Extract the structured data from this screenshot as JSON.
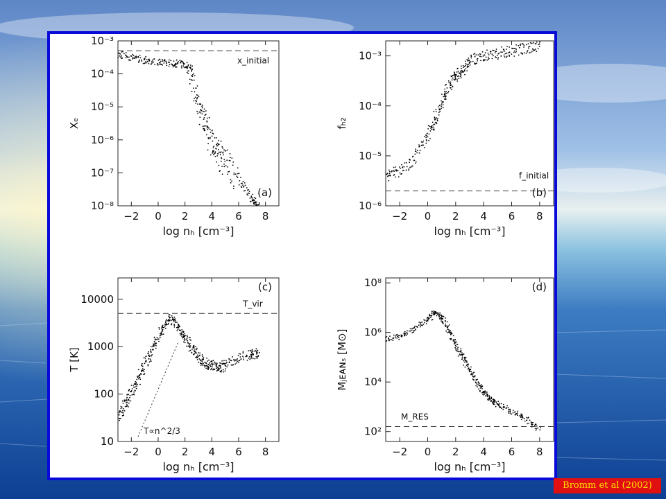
{
  "citation": "Bromm et al (2002)",
  "colors": {
    "frame": "#0a0ad8",
    "citation_bg": "#e01010",
    "citation_text": "#ffe000",
    "points": "#000000"
  },
  "chart_data": [
    {
      "panel": "(a)",
      "type": "scatter",
      "xlabel": "log n_H [cm^-3]",
      "ylabel": "X_e",
      "xlim": [
        -3,
        9
      ],
      "ylim_log10": [
        -8,
        -3
      ],
      "ylog": true,
      "xticks": [
        -2,
        0,
        2,
        4,
        6,
        8
      ],
      "yticks": [
        -8,
        -7,
        -6,
        -5,
        -4,
        -3
      ],
      "reference_line": {
        "label": "x_initial",
        "y_log10": -3.3
      },
      "points_x": [
        -3,
        -2,
        -1,
        0,
        1,
        2,
        2.5,
        3,
        3.5,
        4,
        4.5,
        5,
        6,
        7,
        7.5
      ],
      "points_y_log10": [
        -3.4,
        -3.5,
        -3.58,
        -3.63,
        -3.68,
        -3.72,
        -4.0,
        -4.9,
        -5.6,
        -6.1,
        -6.4,
        -6.7,
        -7.2,
        -7.8,
        -8.0
      ]
    },
    {
      "panel": "(b)",
      "type": "scatter",
      "xlabel": "log n_H [cm^-3]",
      "ylabel": "f_H2",
      "xlim": [
        -3,
        9
      ],
      "ylim_log10": [
        -6,
        -2.7
      ],
      "ylog": true,
      "xticks": [
        -2,
        0,
        2,
        4,
        6,
        8
      ],
      "yticks": [
        -6,
        -5,
        -4,
        -3
      ],
      "reference_line": {
        "label": "f_initial",
        "y_log10": -5.7
      },
      "points_x": [
        -3,
        -2,
        -1,
        0,
        0.5,
        1,
        1.5,
        2,
        2.5,
        3,
        4,
        5,
        6,
        7,
        8
      ],
      "points_y_log10": [
        -5.4,
        -5.3,
        -5.1,
        -4.6,
        -4.3,
        -3.9,
        -3.6,
        -3.4,
        -3.3,
        -3.1,
        -3.0,
        -2.95,
        -2.9,
        -2.85,
        -2.8
      ]
    },
    {
      "panel": "(c)",
      "type": "scatter",
      "xlabel": "log n_H [cm^-3]",
      "ylabel": "T [K]",
      "xlim": [
        -3,
        9
      ],
      "ylim_log10": [
        1,
        4.45
      ],
      "ylog": true,
      "xticks": [
        -2,
        0,
        2,
        4,
        6,
        8
      ],
      "ytick_labels": [
        "10",
        "100",
        "1000",
        "10000"
      ],
      "reference_line": {
        "label": "T_vir",
        "y_log10": 3.7
      },
      "trend_line": {
        "label": "T∝n^2/3",
        "x": [
          -1.5,
          1.5
        ],
        "y_log10": [
          1.1,
          3.1
        ]
      },
      "points_x": [
        -3,
        -2.5,
        -2,
        -1.5,
        -1,
        -0.5,
        0,
        0.5,
        1,
        1.5,
        2,
        2.5,
        3,
        3.5,
        4,
        4.5,
        5,
        6,
        7,
        7.5
      ],
      "points_y_log10": [
        1.5,
        1.75,
        2.0,
        2.3,
        2.6,
        2.9,
        3.2,
        3.45,
        3.6,
        3.4,
        3.2,
        3.0,
        2.8,
        2.65,
        2.6,
        2.55,
        2.6,
        2.75,
        2.85,
        2.85
      ]
    },
    {
      "panel": "(d)",
      "type": "scatter",
      "xlabel": "log n_H [cm^-3]",
      "ylabel": "M_JEANS [M_sun]",
      "xlim": [
        -3,
        9
      ],
      "ylim_log10": [
        1.6,
        8.2
      ],
      "ylog": true,
      "xticks": [
        -2,
        0,
        2,
        4,
        6,
        8
      ],
      "yticks": [
        2,
        4,
        6,
        8
      ],
      "reference_line": {
        "label": "M_RES",
        "y_log10": 2.2
      },
      "points_x": [
        -3,
        -2,
        -1,
        0,
        0.5,
        1,
        1.5,
        2,
        2.5,
        3,
        3.5,
        4,
        4.5,
        5,
        6,
        7,
        8
      ],
      "points_y_log10": [
        5.7,
        5.85,
        6.1,
        6.5,
        6.8,
        6.6,
        6.1,
        5.5,
        5.0,
        4.5,
        4.0,
        3.6,
        3.3,
        3.1,
        2.8,
        2.5,
        2.1
      ]
    }
  ]
}
